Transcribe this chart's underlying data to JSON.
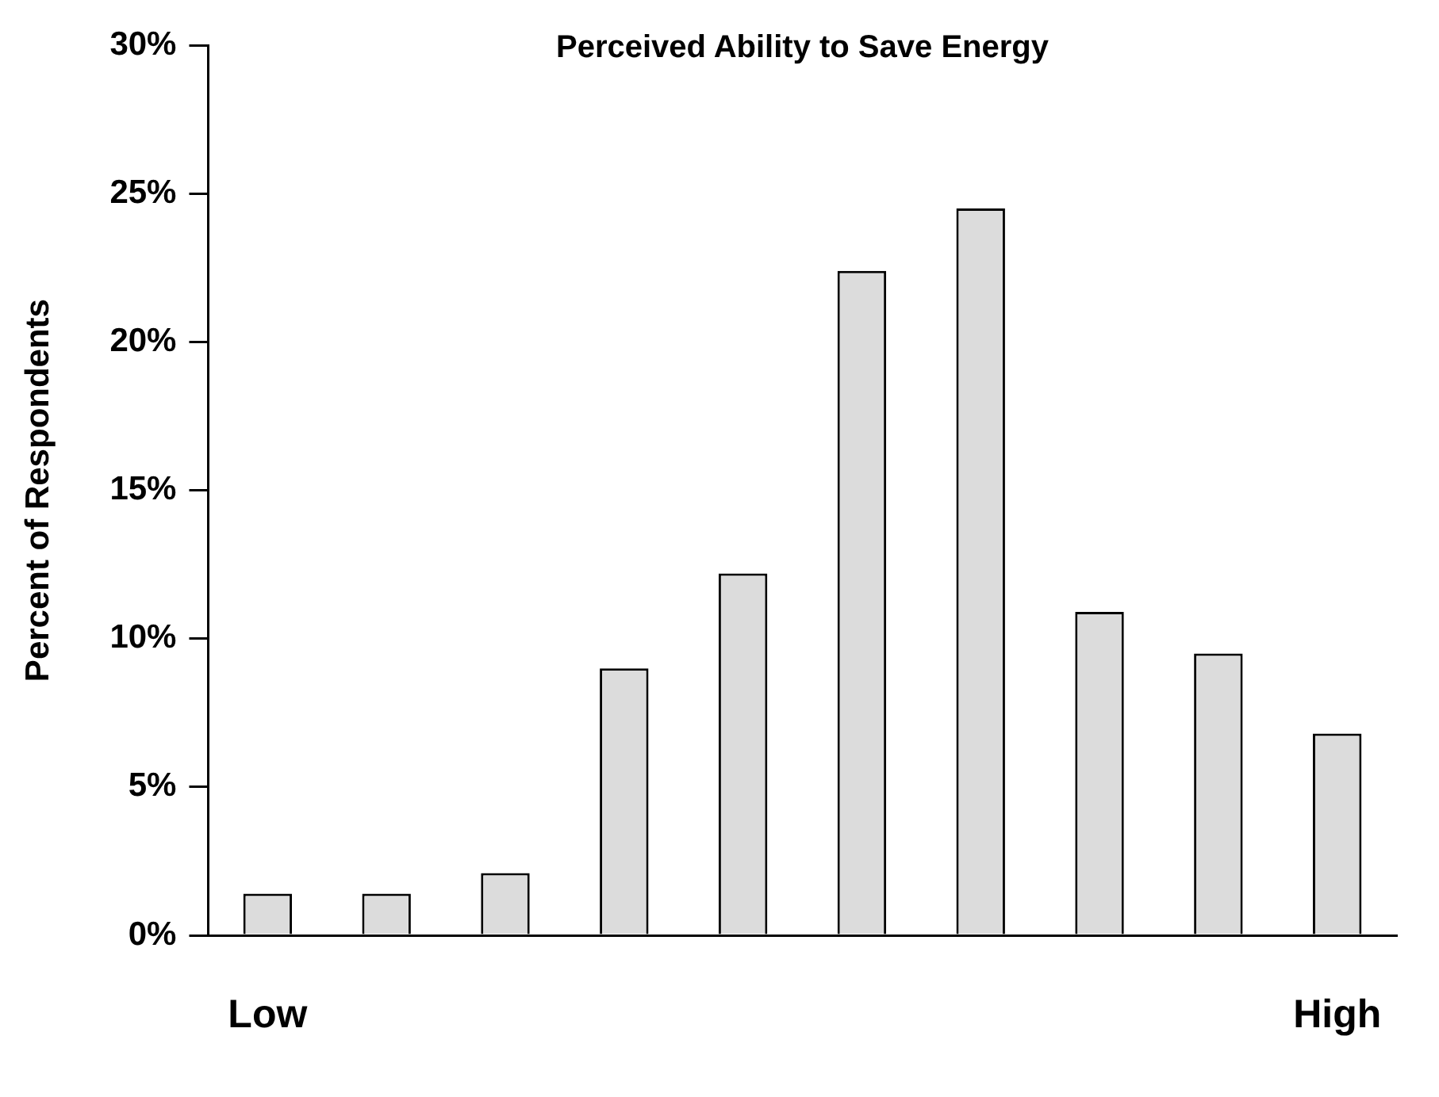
{
  "chart_data": {
    "type": "bar",
    "title": "Perceived Ability to Save Energy",
    "ylabel": "Percent of Respondents",
    "categories": [
      "Low",
      null,
      null,
      null,
      null,
      null,
      null,
      null,
      null,
      "High"
    ],
    "values": [
      1.4,
      1.4,
      2.1,
      9.0,
      12.2,
      22.4,
      24.5,
      10.9,
      9.5,
      6.8
    ],
    "color": "#dcdcdc",
    "ylim": [
      0,
      30
    ],
    "yticks": [
      {
        "value": 0,
        "label": "0%"
      },
      {
        "value": 5,
        "label": "5%"
      },
      {
        "value": 10,
        "label": "10%"
      },
      {
        "value": 15,
        "label": "15%"
      },
      {
        "value": 20,
        "label": "20%"
      },
      {
        "value": 25,
        "label": "25%"
      },
      {
        "value": 30,
        "label": "30%"
      }
    ],
    "grid": false,
    "legend": false
  }
}
